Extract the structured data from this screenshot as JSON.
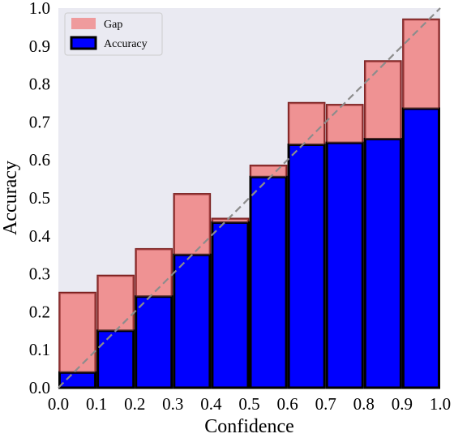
{
  "chart_data": {
    "type": "bar",
    "xlabel": "Confidence",
    "ylabel": "Accuracy",
    "xlim": [
      0.0,
      1.0
    ],
    "ylim": [
      0.0,
      1.0
    ],
    "xticks": [
      "0.0",
      "0.1",
      "0.2",
      "0.3",
      "0.4",
      "0.5",
      "0.6",
      "0.7",
      "0.8",
      "0.9",
      "1.0"
    ],
    "yticks": [
      "0.0",
      "0.1",
      "0.2",
      "0.3",
      "0.4",
      "0.5",
      "0.6",
      "0.7",
      "0.8",
      "0.9",
      "1.0"
    ],
    "bins": [
      0.0,
      0.1,
      0.2,
      0.3,
      0.4,
      0.5,
      0.6,
      0.7,
      0.8,
      0.9
    ],
    "bin_width": 0.1,
    "series": [
      {
        "name": "Gap",
        "color": "#f08080",
        "values": [
          0.25,
          0.295,
          0.365,
          0.51,
          0.445,
          0.585,
          0.75,
          0.745,
          0.86,
          0.97
        ]
      },
      {
        "name": "Accuracy",
        "color": "#0000ff",
        "values": [
          0.04,
          0.15,
          0.24,
          0.35,
          0.435,
          0.555,
          0.64,
          0.645,
          0.655,
          0.735
        ]
      }
    ],
    "reference_line": {
      "style": "dashed",
      "from": [
        0.0,
        0.0
      ],
      "to": [
        1.0,
        1.0
      ]
    },
    "legend_position": "top-left",
    "background": "#eaeaf2"
  }
}
